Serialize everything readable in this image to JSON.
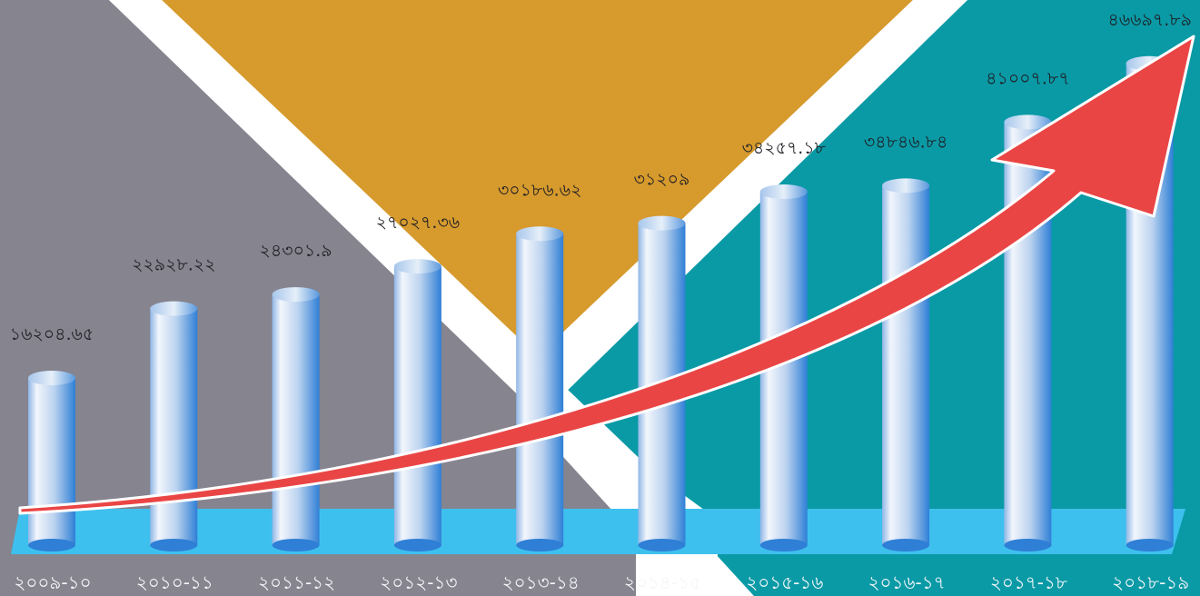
{
  "chart_data": {
    "type": "bar",
    "title": "",
    "xlabel": "",
    "ylabel": "",
    "categories": [
      "২০০৯-১০",
      "২০১০-১১",
      "২০১১-১২",
      "২০১২-১৩",
      "২০১৩-১৪",
      "২০১৪-১৫",
      "২০১৫-১৬",
      "২০১৬-১৭",
      "২০১৭-১৮",
      "২০১৮-১৯"
    ],
    "values": [
      16204.65,
      22928.22,
      24301.9,
      27027.36,
      30186.62,
      31209,
      34257.18,
      34846.84,
      41007.87,
      46697.89
    ],
    "value_labels": [
      "১৬২০৪.৬৫",
      "২২৯২৮.২২",
      "২৪৩০১.৯",
      "২৭০২৭.৩৬",
      "৩০১৮৬.৬২",
      "৩১২০৯",
      "৩৪২৫৭.১৮",
      "৩৪৮৪৬.৮৪",
      "৪১০০৭.৮৭",
      "৪৬৬৯৭.৮৯"
    ],
    "ylim": [
      0,
      48000
    ],
    "grid": false,
    "legend": "none",
    "trend_arrow": true,
    "colors": {
      "panel_left": "#85848f",
      "panel_top": "#d69a2d",
      "panel_right": "#0a9aa6",
      "floor": "#3ec0ee",
      "bar_light": "#eef4fc",
      "bar_mid": "#a9c7ea",
      "bar_dark": "#2f7fd6",
      "arrow": "#ea4545",
      "arrow_edge": "#ffffff"
    }
  }
}
